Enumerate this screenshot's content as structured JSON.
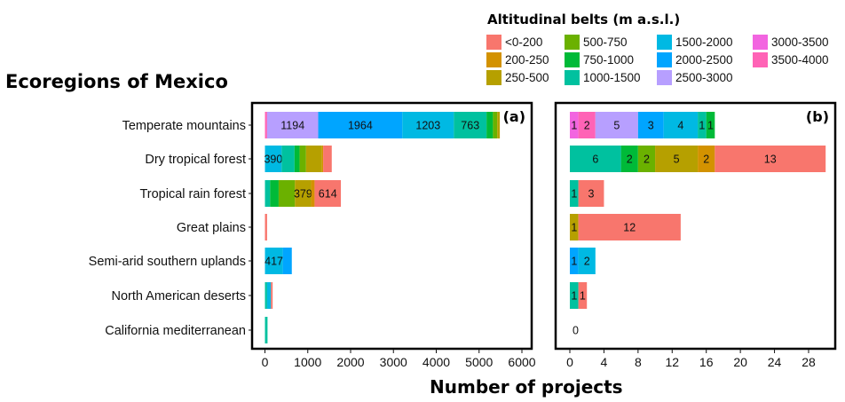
{
  "header": {
    "title": "Ecoregions of Mexico",
    "legend_title": "Altitudinal belts (m a.s.l.)",
    "xlabel": "Number of projects"
  },
  "chart_data": {
    "type": "bar",
    "orientation": "horizontal",
    "stacked": true,
    "ylabel": "Ecoregions of Mexico",
    "xlabel": "Number of projects",
    "legend_title": "Altitudinal belts (m a.s.l.)",
    "categories": [
      "Temperate mountains",
      "Dry tropical forest",
      "Tropical rain forest",
      "Great plains",
      "Semi-arid southern uplands",
      "North American deserts",
      "California mediterranean"
    ],
    "belts": [
      {
        "name": "<0-200",
        "color": "#F8766D"
      },
      {
        "name": "200-250",
        "color": "#D39200"
      },
      {
        "name": "250-500",
        "color": "#B6A000"
      },
      {
        "name": "500-750",
        "color": "#6BB100"
      },
      {
        "name": "750-1000",
        "color": "#00BA38"
      },
      {
        "name": "1000-1500",
        "color": "#00C19F"
      },
      {
        "name": "1500-2000",
        "color": "#00B9E3"
      },
      {
        "name": "2000-2500",
        "color": "#00A5FF"
      },
      {
        "name": "2500-3000",
        "color": "#B79FFF"
      },
      {
        "name": "3000-3500",
        "color": "#F265E0"
      },
      {
        "name": "3500-4000",
        "color": "#FF63B6"
      }
    ],
    "panels": [
      {
        "label": "(a)",
        "xlim": [
          0,
          6000
        ],
        "ticks": [
          0,
          1000,
          2000,
          3000,
          4000,
          5000,
          6000
        ],
        "stacks": [
          [
            {
              "belt": "3500-4000",
              "value": 50
            },
            {
              "belt": "2500-3000",
              "value": 1194,
              "label": "1194"
            },
            {
              "belt": "2000-2500",
              "value": 1964,
              "label": "1964"
            },
            {
              "belt": "1500-2000",
              "value": 1203,
              "label": "1203"
            },
            {
              "belt": "1000-1500",
              "value": 763,
              "label": "763"
            },
            {
              "belt": "750-1000",
              "value": 150
            },
            {
              "belt": "500-750",
              "value": 100
            },
            {
              "belt": "250-500",
              "value": 60
            }
          ],
          [
            {
              "belt": "1500-2000",
              "value": 390,
              "label": "390"
            },
            {
              "belt": "1000-1500",
              "value": 300
            },
            {
              "belt": "750-1000",
              "value": 120
            },
            {
              "belt": "500-750",
              "value": 150
            },
            {
              "belt": "250-500",
              "value": 370
            },
            {
              "belt": "200-250",
              "value": 30
            },
            {
              "belt": "<0-200",
              "value": 200
            }
          ],
          [
            {
              "belt": "1000-1500",
              "value": 120
            },
            {
              "belt": "750-1000",
              "value": 200
            },
            {
              "belt": "500-750",
              "value": 380
            },
            {
              "belt": "250-500",
              "value": 379,
              "label": "379"
            },
            {
              "belt": "200-250",
              "value": 80
            },
            {
              "belt": "<0-200",
              "value": 614,
              "label": "614"
            }
          ],
          [
            {
              "belt": "<0-200",
              "value": 50
            }
          ],
          [
            {
              "belt": "1500-2000",
              "value": 417,
              "label": "417"
            },
            {
              "belt": "2000-2500",
              "value": 210
            }
          ],
          [
            {
              "belt": "1000-1500",
              "value": 50
            },
            {
              "belt": "1500-2000",
              "value": 90
            },
            {
              "belt": "<0-200",
              "value": 40
            }
          ],
          [
            {
              "belt": "1000-1500",
              "value": 60
            }
          ]
        ]
      },
      {
        "label": "(b)",
        "xlim": [
          0,
          30.5
        ],
        "ticks": [
          0,
          4,
          8,
          12,
          16,
          20,
          24,
          28
        ],
        "stacks": [
          [
            {
              "belt": "3000-3500",
              "value": 1,
              "label": "1"
            },
            {
              "belt": "3500-4000",
              "value": 2,
              "label": "2"
            },
            {
              "belt": "2500-3000",
              "value": 5,
              "label": "5"
            },
            {
              "belt": "2000-2500",
              "value": 3,
              "label": "3"
            },
            {
              "belt": "1500-2000",
              "value": 4,
              "label": "4"
            },
            {
              "belt": "1000-1500",
              "value": 1,
              "label": "1"
            },
            {
              "belt": "750-1000",
              "value": 1,
              "label": "1"
            }
          ],
          [
            {
              "belt": "1000-1500",
              "value": 6,
              "label": "6"
            },
            {
              "belt": "750-1000",
              "value": 2,
              "label": "2"
            },
            {
              "belt": "500-750",
              "value": 2,
              "label": "2"
            },
            {
              "belt": "250-500",
              "value": 5,
              "label": "5"
            },
            {
              "belt": "200-250",
              "value": 2,
              "label": "2"
            },
            {
              "belt": "<0-200",
              "value": 13,
              "label": "13"
            }
          ],
          [
            {
              "belt": "1000-1500",
              "value": 1,
              "label": "1"
            },
            {
              "belt": "<0-200",
              "value": 3,
              "label": "3"
            }
          ],
          [
            {
              "belt": "250-500",
              "value": 1,
              "label": "1"
            },
            {
              "belt": "<0-200",
              "value": 12,
              "label": "12"
            }
          ],
          [
            {
              "belt": "2000-2500",
              "value": 1,
              "label": "1"
            },
            {
              "belt": "1500-2000",
              "value": 2,
              "label": "2"
            }
          ],
          [
            {
              "belt": "1000-1500",
              "value": 1,
              "label": "1"
            },
            {
              "belt": "<0-200",
              "value": 1,
              "label": "1"
            }
          ],
          [
            {
              "belt": "none",
              "value": 0,
              "label": "0"
            }
          ]
        ]
      }
    ]
  }
}
